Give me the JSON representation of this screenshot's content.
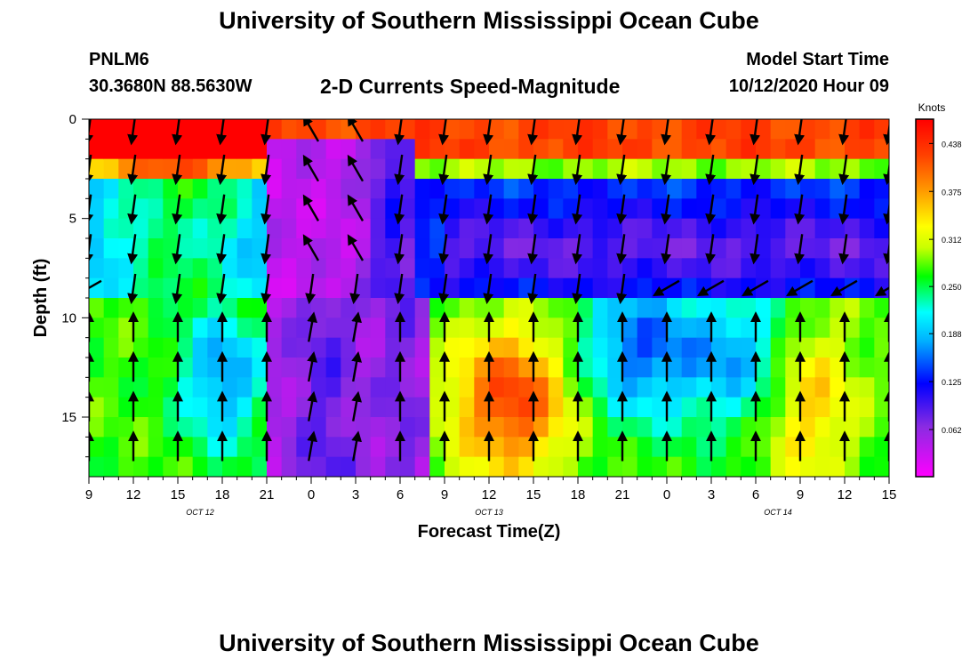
{
  "page": {
    "title_top": "University of Southern Mississippi Ocean Cube",
    "title_bottom": "University of Southern Mississippi Ocean Cube",
    "station": "PNLM6",
    "coords": "30.3680N 88.5630W",
    "subtitle": "2-D Currents Speed-Magnitude",
    "model_start_label": "Model Start Time",
    "model_start_value": "10/12/2020 Hour 09"
  },
  "chart_data": {
    "type": "heatmap",
    "title": "2-D Currents Speed-Magnitude",
    "xlabel": "Forecast Time(Z)",
    "ylabel": "Depth (ft)",
    "x_range_hours": [
      0,
      54
    ],
    "y_range_ft": [
      0,
      18
    ],
    "y_inverted": true,
    "x_ticks": [
      {
        "hour": 0,
        "label": "9"
      },
      {
        "hour": 3,
        "label": "12"
      },
      {
        "hour": 6,
        "label": "15"
      },
      {
        "hour": 9,
        "label": "18"
      },
      {
        "hour": 12,
        "label": "21"
      },
      {
        "hour": 15,
        "label": "0"
      },
      {
        "hour": 18,
        "label": "3"
      },
      {
        "hour": 21,
        "label": "6"
      },
      {
        "hour": 24,
        "label": "9"
      },
      {
        "hour": 27,
        "label": "12"
      },
      {
        "hour": 30,
        "label": "15"
      },
      {
        "hour": 33,
        "label": "18"
      },
      {
        "hour": 36,
        "label": "21"
      },
      {
        "hour": 39,
        "label": "0"
      },
      {
        "hour": 42,
        "label": "3"
      },
      {
        "hour": 45,
        "label": "6"
      },
      {
        "hour": 48,
        "label": "9"
      },
      {
        "hour": 51,
        "label": "12"
      },
      {
        "hour": 54,
        "label": "15"
      }
    ],
    "date_labels": [
      {
        "hour": 7.5,
        "label": "OCT 12"
      },
      {
        "hour": 27,
        "label": "OCT 13"
      },
      {
        "hour": 46.5,
        "label": "OCT 14"
      }
    ],
    "y_ticks": [
      {
        "depth": 0,
        "label": "0"
      },
      {
        "depth": 5,
        "label": "5"
      },
      {
        "depth": 10,
        "label": "10"
      },
      {
        "depth": 15,
        "label": "15"
      }
    ],
    "colorbar": {
      "unit": "Knots",
      "min": 0,
      "max": 0.47,
      "tick_labels": [
        "0.438",
        "0.375",
        "0.312",
        "0.250",
        "0.188",
        "0.125",
        "0.062"
      ],
      "tick_values": [
        0.438,
        0.375,
        0.312,
        0.25,
        0.188,
        0.125,
        0.062
      ]
    },
    "grid": false
  }
}
